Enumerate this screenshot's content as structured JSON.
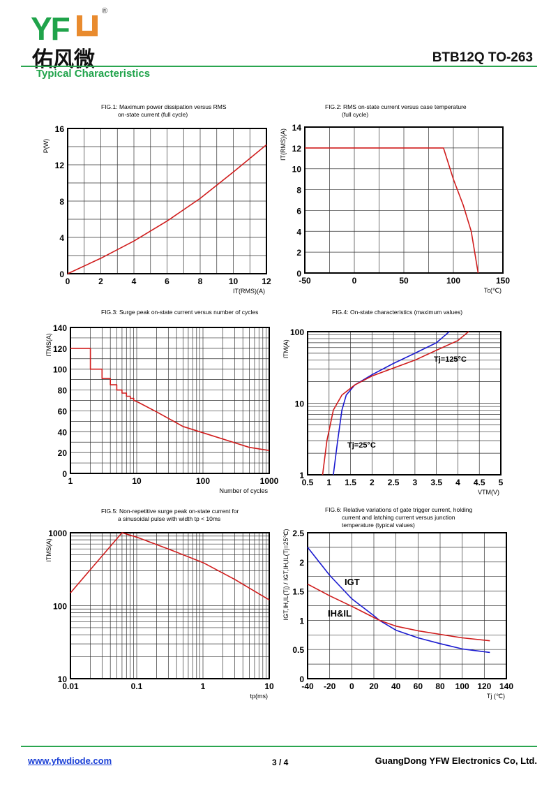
{
  "header": {
    "logo_letters": "YF",
    "logo_cn": "佑风微",
    "registered": "®",
    "part_number": "BTB12Q TO-263",
    "section_title": "Typical Characteristics"
  },
  "footer": {
    "website": "www.yfwdiode.com",
    "page": "3 / 4",
    "company": "GuangDong YFW Electronics Co, Ltd."
  },
  "colors": {
    "green": "#1fa34a",
    "orange": "#e98b2e",
    "red": "#d01c1c",
    "blue": "#1a1ad0"
  },
  "chart_data": [
    {
      "type": "line",
      "title": [
        "FIG.1: Maximum power dissipation versus RMS",
        "on-state current (full cycle)"
      ],
      "xlabel": "IT(RMS)(A)",
      "ylabel": "P(W)",
      "xlim": [
        0,
        12
      ],
      "ylim": [
        0,
        16
      ],
      "xscale": "linear",
      "yscale": "linear",
      "xticks": [
        0,
        2,
        4,
        6,
        8,
        10,
        12
      ],
      "yticks": [
        0,
        4,
        8,
        12,
        16
      ],
      "xgrid": 1,
      "ygrid": 2,
      "series": [
        {
          "name": "P",
          "color": "#d01c1c",
          "x": [
            0,
            2,
            4,
            6,
            8,
            10,
            12
          ],
          "y": [
            0,
            1.7,
            3.6,
            5.8,
            8.3,
            11.2,
            14.2
          ]
        }
      ],
      "annotations": []
    },
    {
      "type": "line",
      "title": [
        "FIG.2: RMS on-state current versus case temperature",
        "(full cycle)"
      ],
      "xlabel": "Tc(℃)",
      "ylabel": "IT(RMS)(A)",
      "xlim": [
        -50,
        150
      ],
      "ylim": [
        0,
        14
      ],
      "xscale": "linear",
      "yscale": "linear",
      "xticks": [
        -50,
        0,
        50,
        100,
        150
      ],
      "yticks": [
        0,
        2,
        4,
        6,
        8,
        10,
        12,
        14
      ],
      "xgrid": 25,
      "ygrid": 2,
      "series": [
        {
          "name": "IT(RMS)",
          "color": "#d01c1c",
          "x": [
            -50,
            90,
            100,
            110,
            118,
            125
          ],
          "y": [
            12,
            12,
            9,
            6.5,
            4,
            0
          ]
        }
      ],
      "annotations": []
    },
    {
      "type": "line",
      "title": [
        "FIG.3: Surge peak on-state current versus number of cycles"
      ],
      "xlabel": "Number of cycles",
      "ylabel": "ITMS(A)",
      "xlim": [
        1,
        1000
      ],
      "ylim": [
        0,
        140
      ],
      "xscale": "log",
      "yscale": "linear",
      "xticks": [
        1,
        10,
        100,
        1000
      ],
      "yticks": [
        0,
        20,
        40,
        60,
        80,
        100,
        120,
        140
      ],
      "ygrid": 10,
      "series": [
        {
          "name": "ITSM",
          "color": "#d01c1c",
          "x": [
            1,
            2,
            2,
            3,
            3,
            4,
            4,
            5,
            5,
            6,
            6,
            7,
            7,
            8,
            8,
            9,
            9,
            10,
            20,
            50,
            100,
            500,
            1000
          ],
          "y": [
            120,
            120,
            100,
            100,
            91,
            91,
            85,
            85,
            80,
            80,
            77,
            77,
            74,
            74,
            72,
            72,
            70,
            69,
            59,
            45,
            39,
            25,
            22
          ]
        }
      ],
      "annotations": []
    },
    {
      "type": "line",
      "title": [
        "FIG.4: On-state characteristics (maximum values)"
      ],
      "xlabel": "VTM(V)",
      "ylabel": "ITM(A)",
      "xlim": [
        0.5,
        5
      ],
      "ylim": [
        1,
        100
      ],
      "xscale": "linear",
      "yscale": "log",
      "xticks": [
        0.5,
        1,
        1.5,
        2,
        2.5,
        3,
        3.5,
        4,
        4.5,
        5
      ],
      "yticks": [
        1,
        10,
        100
      ],
      "xgrid": 0.5,
      "series": [
        {
          "name": "Tj=25°C",
          "color": "#1a1ad0",
          "x": [
            1.1,
            1.2,
            1.3,
            1.4,
            1.6,
            2,
            2.5,
            3,
            3.5,
            3.8
          ],
          "y": [
            1,
            3,
            8,
            13,
            18,
            25,
            36,
            50,
            70,
            100
          ]
        },
        {
          "name": "Tj=125°C",
          "color": "#d01c1c",
          "x": [
            0.85,
            0.95,
            1.1,
            1.3,
            1.6,
            2,
            2.5,
            3,
            3.5,
            4,
            4.25
          ],
          "y": [
            1,
            3,
            8,
            13,
            18,
            24,
            31,
            40,
            55,
            75,
            100
          ]
        }
      ],
      "annotations": [
        "Tj=125°C",
        "Tj=25°C"
      ]
    },
    {
      "type": "line",
      "title": [
        "FIG.5: Non-repetitive surge peak on-state current for",
        "a sinusoidal pulse with width tp < 10ms"
      ],
      "xlabel": "tp(ms)",
      "ylabel": "ITMS(A)",
      "xlim": [
        0.01,
        10
      ],
      "ylim": [
        10,
        1000
      ],
      "xscale": "log",
      "yscale": "log",
      "xticks": [
        0.01,
        0.1,
        1,
        10
      ],
      "yticks": [
        10,
        100,
        1000
      ],
      "series": [
        {
          "name": "ITSM",
          "color": "#d01c1c",
          "x": [
            0.01,
            0.06,
            0.1,
            0.3,
            1,
            3,
            10
          ],
          "y": [
            150,
            1000,
            870,
            600,
            390,
            230,
            120
          ]
        }
      ],
      "annotations": []
    },
    {
      "type": "line",
      "title": [
        "FIG.6: Relative variations of gate trigger current, holding",
        "current and latching current versus junction",
        "temperature (typical values)"
      ],
      "xlabel": "Tj (℃)",
      "ylabel": "IGT,IH,IL(Tj) / IGT,IH,IL(Tj=25℃)",
      "xlim": [
        -40,
        140
      ],
      "ylim": [
        0,
        2.5
      ],
      "xscale": "linear",
      "yscale": "linear",
      "xticks": [
        -40,
        -20,
        0,
        20,
        40,
        60,
        80,
        100,
        120,
        140
      ],
      "yticks": [
        0,
        0.5,
        1,
        1.5,
        2,
        2.5
      ],
      "xgrid": 20,
      "ygrid": 0.25,
      "series": [
        {
          "name": "IGT",
          "color": "#1a1ad0",
          "x": [
            -40,
            -20,
            0,
            20,
            25,
            40,
            60,
            80,
            100,
            125
          ],
          "y": [
            2.25,
            1.77,
            1.37,
            1.08,
            1.0,
            0.83,
            0.7,
            0.6,
            0.51,
            0.45
          ]
        },
        {
          "name": "IH&IL",
          "color": "#d01c1c",
          "x": [
            -40,
            -20,
            0,
            25,
            40,
            60,
            80,
            100,
            125
          ],
          "y": [
            1.62,
            1.42,
            1.24,
            1.0,
            0.9,
            0.82,
            0.76,
            0.7,
            0.65
          ]
        }
      ],
      "annotations": [
        "IGT",
        "IH&IL"
      ]
    }
  ]
}
